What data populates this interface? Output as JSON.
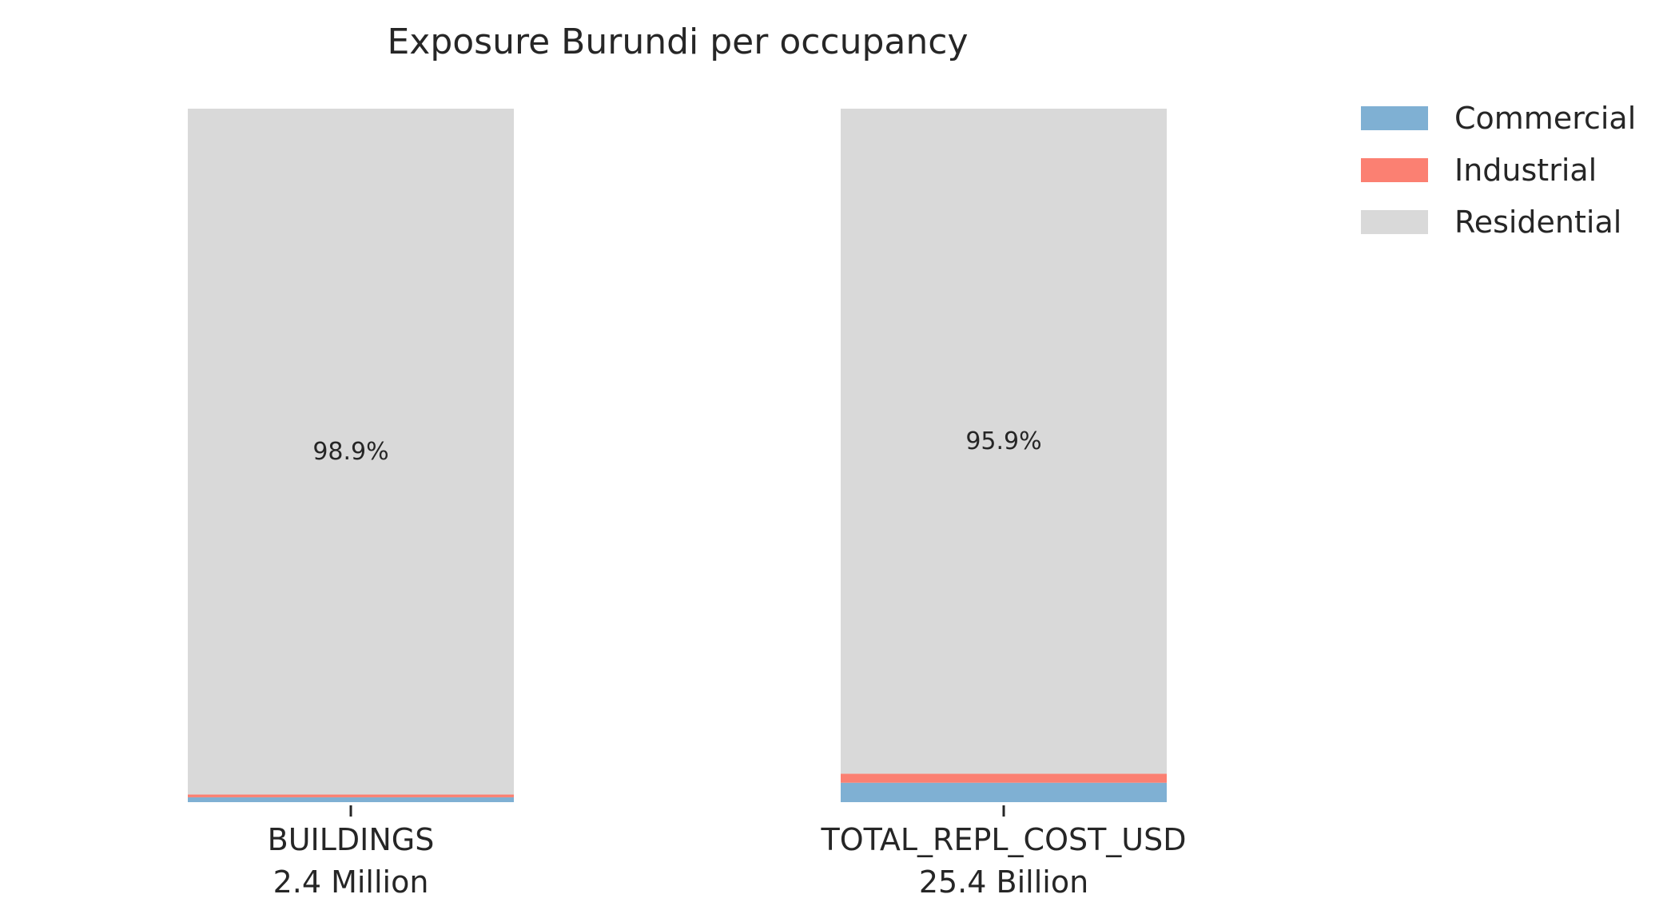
{
  "chart_data": {
    "type": "bar",
    "stacked": true,
    "normalized": true,
    "title": "Exposure Burundi per occupancy",
    "categories": [
      "BUILDINGS",
      "TOTAL_REPL_COST_USD"
    ],
    "category_totals": [
      "2.4 Million",
      "25.4 Billion"
    ],
    "series": [
      {
        "name": "Commercial",
        "color": "#7fb0d3",
        "values": [
          0.7,
          2.8
        ]
      },
      {
        "name": "Industrial",
        "color": "#fb8072",
        "values": [
          0.4,
          1.3
        ]
      },
      {
        "name": "Residential",
        "color": "#d9d9d9",
        "values": [
          98.9,
          95.9
        ]
      }
    ],
    "data_labels": [
      "98.9%",
      "95.9%"
    ],
    "ylim": [
      0,
      100
    ],
    "legend": "top-right",
    "grid": false
  }
}
